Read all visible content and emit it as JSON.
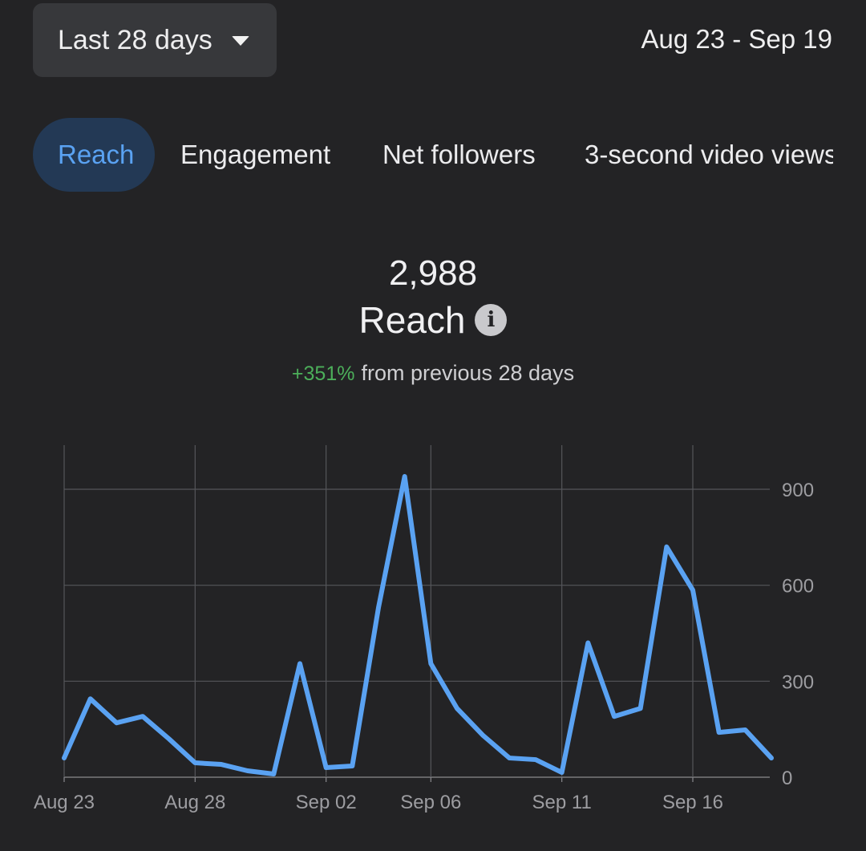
{
  "header": {
    "period_label": "Last 28 days",
    "date_range": "Aug 23 - Sep 19"
  },
  "tabs": [
    {
      "label": "Reach",
      "active": true
    },
    {
      "label": "Engagement",
      "active": false
    },
    {
      "label": "Net followers",
      "active": false
    },
    {
      "label": "3-second video views",
      "active": false
    }
  ],
  "summary": {
    "value": "2,988",
    "metric": "Reach",
    "change_pct": "+351%",
    "change_text": "from previous 28 days"
  },
  "icons": {
    "period_dropdown": "caret-down-icon",
    "metric_info": "info-icon"
  },
  "colors": {
    "line": "#5aa2f2",
    "accent_tab_bg": "#233955",
    "positive": "#4caf5a",
    "background": "#232325"
  },
  "chart_data": {
    "type": "line",
    "x": [
      "Aug 23",
      "Aug 24",
      "Aug 25",
      "Aug 26",
      "Aug 27",
      "Aug 28",
      "Aug 29",
      "Aug 30",
      "Aug 31",
      "Sep 01",
      "Sep 02",
      "Sep 03",
      "Sep 04",
      "Sep 05",
      "Sep 06",
      "Sep 07",
      "Sep 08",
      "Sep 09",
      "Sep 10",
      "Sep 11",
      "Sep 12",
      "Sep 13",
      "Sep 14",
      "Sep 15",
      "Sep 16",
      "Sep 17",
      "Sep 18",
      "Sep 19"
    ],
    "series": [
      {
        "values": [
          60,
          245,
          170,
          190,
          120,
          45,
          40,
          20,
          10,
          355,
          30,
          35,
          530,
          940,
          355,
          215,
          130,
          60,
          55,
          15,
          420,
          190,
          215,
          720,
          585,
          140,
          148,
          60
        ]
      }
    ],
    "xticks": [
      "Aug 23",
      "Aug 28",
      "Sep 02",
      "Sep 06",
      "Sep 11",
      "Sep 16"
    ],
    "ylim": [
      0,
      900
    ],
    "yticks": [
      0,
      300,
      600,
      900
    ],
    "grid": true,
    "y_axis_position": "right"
  }
}
